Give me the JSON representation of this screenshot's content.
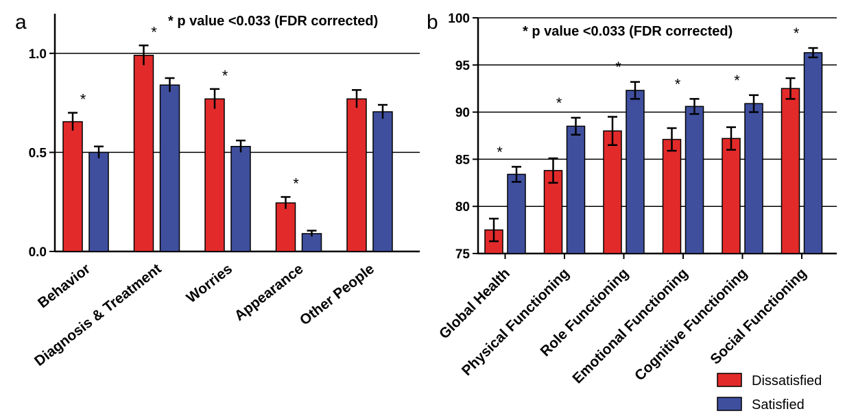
{
  "chart_data": [
    {
      "type": "bar",
      "panel_label": "a",
      "note": "* p value <0.033 (FDR corrected)",
      "categories": [
        "Behavior",
        "Diagnosis & Treatment",
        "Worries",
        "Appearance",
        "Other People"
      ],
      "series": [
        {
          "name": "Dissatisfied",
          "color": "#e32a2a",
          "values": [
            0.655,
            0.99,
            0.77,
            0.245,
            0.77
          ],
          "errors": [
            0.045,
            0.05,
            0.05,
            0.03,
            0.045
          ]
        },
        {
          "name": "Satisfied",
          "color": "#3f4f9e",
          "values": [
            0.5,
            0.84,
            0.53,
            0.09,
            0.705
          ],
          "errors": [
            0.03,
            0.035,
            0.03,
            0.015,
            0.035
          ]
        }
      ],
      "significant": [
        true,
        true,
        true,
        true,
        false
      ],
      "yticks": [
        "0.0",
        "0.5",
        "1.0"
      ],
      "ylim": [
        0,
        1.2
      ],
      "grid": true
    },
    {
      "type": "bar",
      "panel_label": "b",
      "note": "* p value <0.033 (FDR corrected)",
      "categories": [
        "Global Health",
        "Physical Functioning",
        "Role Functioning",
        "Emotional Functioning",
        "Cognitive Functioning",
        "Social Functioning"
      ],
      "series": [
        {
          "name": "Dissatisfied",
          "color": "#e32a2a",
          "values": [
            77.5,
            83.8,
            88.0,
            87.1,
            87.2,
            92.5
          ],
          "errors": [
            1.2,
            1.3,
            1.5,
            1.2,
            1.2,
            1.1
          ]
        },
        {
          "name": "Satisfied",
          "color": "#3f4f9e",
          "values": [
            83.4,
            88.5,
            92.3,
            90.6,
            90.9,
            96.3
          ],
          "errors": [
            0.8,
            0.9,
            0.9,
            0.8,
            0.9,
            0.5
          ]
        }
      ],
      "significant": [
        true,
        true,
        true,
        true,
        true,
        true
      ],
      "yticks": [
        "75",
        "80",
        "85",
        "90",
        "95",
        "100"
      ],
      "ylim": [
        75,
        100
      ],
      "grid": true
    }
  ],
  "legend": {
    "items": [
      {
        "label": "Dissatisfied",
        "color": "#e32a2a"
      },
      {
        "label": "Satisfied",
        "color": "#3f4f9e"
      }
    ]
  }
}
